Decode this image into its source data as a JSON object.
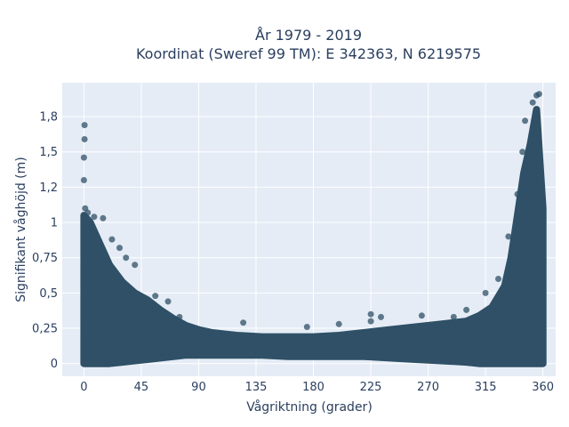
{
  "chart_data": {
    "type": "scatter",
    "title_line1": "År 1979 - 2019",
    "title_line2": "Koordinat (Sweref 99 TM): E 342363, N 6219575",
    "xlabel": "Vågriktning (grader)",
    "ylabel": "Signifikant våghöjd (m)",
    "xlim": [
      -17,
      370
    ],
    "ylim": [
      -0.09,
      1.99
    ],
    "x_ticks": [
      0,
      45,
      90,
      135,
      180,
      225,
      270,
      315,
      360
    ],
    "x_tick_labels": [
      "0",
      "45",
      "90",
      "135",
      "180",
      "225",
      "270",
      "315",
      "360"
    ],
    "y_ticks": [
      0,
      0.25,
      0.5,
      0.75,
      1,
      1.25,
      1.5,
      1.75
    ],
    "y_tick_labels": [
      "0",
      "0,25",
      "0,5",
      "0,75",
      "1",
      "1,2",
      "1,5",
      "1,8"
    ],
    "grid": true,
    "marker_color": "#2f5066",
    "plot_background": "#e5ecf6",
    "envelope": {
      "x": [
        0,
        5,
        10,
        20,
        30,
        40,
        50,
        60,
        70,
        80,
        90,
        100,
        120,
        140,
        160,
        180,
        200,
        220,
        240,
        260,
        280,
        300,
        310,
        320,
        330,
        335,
        340,
        345,
        350,
        355,
        360
      ],
      "upper": [
        1.05,
        1.0,
        0.9,
        0.7,
        0.58,
        0.5,
        0.45,
        0.38,
        0.32,
        0.27,
        0.24,
        0.22,
        0.2,
        0.19,
        0.19,
        0.19,
        0.2,
        0.22,
        0.24,
        0.26,
        0.28,
        0.3,
        0.34,
        0.4,
        0.55,
        0.75,
        1.05,
        1.35,
        1.55,
        1.8,
        1.1
      ],
      "lower": [
        0.0,
        0.0,
        0.0,
        0.0,
        0.01,
        0.02,
        0.03,
        0.04,
        0.05,
        0.06,
        0.06,
        0.06,
        0.06,
        0.06,
        0.05,
        0.05,
        0.05,
        0.05,
        0.04,
        0.03,
        0.02,
        0.01,
        0.0,
        0.0,
        0.0,
        0.0,
        0.0,
        0.0,
        0.0,
        0.0,
        0.0
      ]
    },
    "outliers": [
      {
        "x": 0.5,
        "y": 1.69
      },
      {
        "x": 0.5,
        "y": 1.59
      },
      {
        "x": 0,
        "y": 1.46
      },
      {
        "x": 0,
        "y": 1.3
      },
      {
        "x": 1,
        "y": 1.1
      },
      {
        "x": 3,
        "y": 1.07
      },
      {
        "x": 8,
        "y": 1.04
      },
      {
        "x": 15,
        "y": 1.03
      },
      {
        "x": 22,
        "y": 0.88
      },
      {
        "x": 28,
        "y": 0.82
      },
      {
        "x": 33,
        "y": 0.75
      },
      {
        "x": 40,
        "y": 0.7
      },
      {
        "x": 56,
        "y": 0.48
      },
      {
        "x": 66,
        "y": 0.44
      },
      {
        "x": 75,
        "y": 0.33
      },
      {
        "x": 125,
        "y": 0.29
      },
      {
        "x": 175,
        "y": 0.26
      },
      {
        "x": 200,
        "y": 0.28
      },
      {
        "x": 225,
        "y": 0.35
      },
      {
        "x": 225,
        "y": 0.3
      },
      {
        "x": 233,
        "y": 0.33
      },
      {
        "x": 265,
        "y": 0.34
      },
      {
        "x": 290,
        "y": 0.33
      },
      {
        "x": 300,
        "y": 0.38
      },
      {
        "x": 315,
        "y": 0.5
      },
      {
        "x": 325,
        "y": 0.6
      },
      {
        "x": 333,
        "y": 0.9
      },
      {
        "x": 340,
        "y": 1.2
      },
      {
        "x": 344,
        "y": 1.5
      },
      {
        "x": 346,
        "y": 1.72
      },
      {
        "x": 352,
        "y": 1.85
      },
      {
        "x": 355,
        "y": 1.9
      },
      {
        "x": 357,
        "y": 1.91
      }
    ]
  }
}
